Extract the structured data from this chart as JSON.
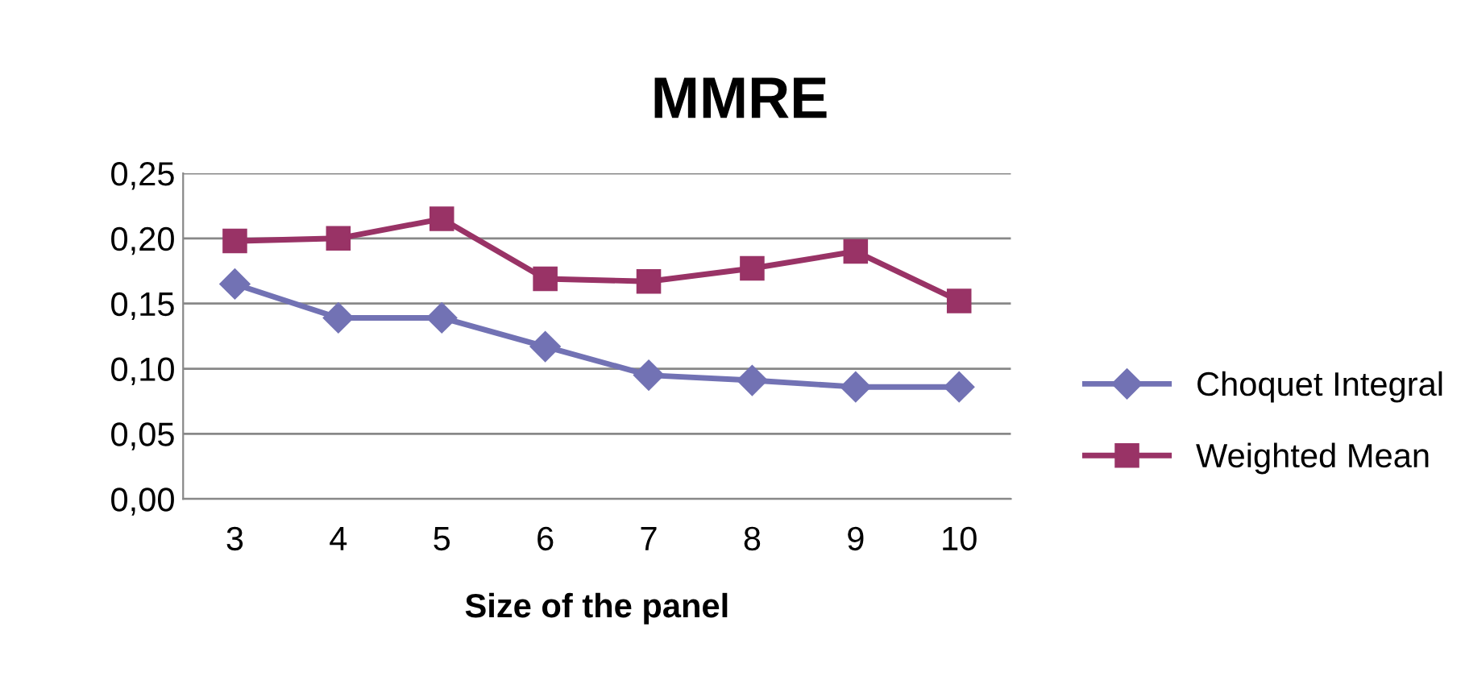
{
  "chart_data": {
    "type": "line",
    "title": "MMRE",
    "xlabel": "Size of the panel",
    "categories": [
      "3",
      "4",
      "5",
      "6",
      "7",
      "8",
      "9",
      "10"
    ],
    "series": [
      {
        "name": "Choquet Integral",
        "color": "#7272b4",
        "marker": "diamond",
        "values": [
          0.165,
          0.139,
          0.139,
          0.117,
          0.095,
          0.091,
          0.086,
          0.086
        ]
      },
      {
        "name": "Weighted Mean",
        "color": "#993366",
        "marker": "square",
        "values": [
          0.198,
          0.2,
          0.215,
          0.169,
          0.167,
          0.177,
          0.19,
          0.152
        ]
      }
    ],
    "ylim": [
      0,
      0.25
    ],
    "yticks": [
      {
        "value": 0,
        "label": "0,00"
      },
      {
        "value": 0.05,
        "label": "0,05"
      },
      {
        "value": 0.1,
        "label": "0,10"
      },
      {
        "value": 0.15,
        "label": "0,15"
      },
      {
        "value": 0.2,
        "label": "0,20"
      },
      {
        "value": 0.25,
        "label": "0,25"
      }
    ],
    "grid": "y",
    "legend": "right",
    "line_style": "solid"
  }
}
